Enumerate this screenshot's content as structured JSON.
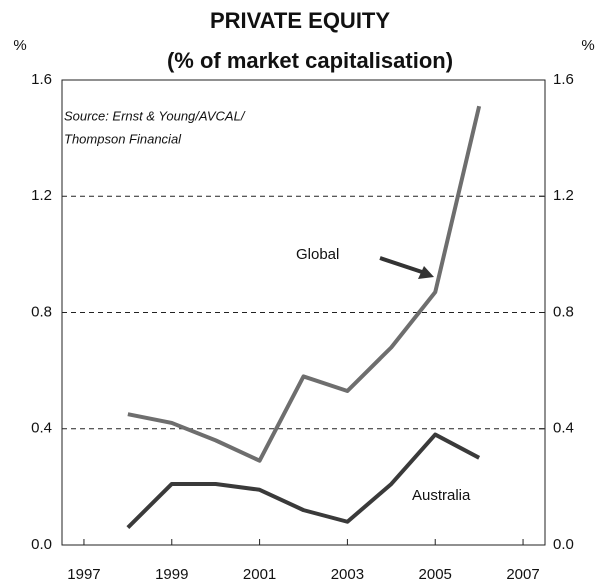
{
  "chart_data": {
    "type": "line",
    "title": "PRIVATE EQUITY",
    "subtitle": "(% of market capitalisation)",
    "y_label": "%",
    "y2_label": "%",
    "source": [
      "Source: Ernst & Young/AVCAL/",
      "Thompson Financial"
    ],
    "x": [
      1998,
      1999,
      2000,
      2001,
      2002,
      2003,
      2004,
      2005,
      2006
    ],
    "series": [
      {
        "name": "Global",
        "color": "#6e6e6e",
        "values": [
          0.45,
          0.42,
          0.36,
          0.29,
          0.58,
          0.53,
          0.68,
          0.87,
          1.51
        ]
      },
      {
        "name": "Australia",
        "color": "#3a3a3a",
        "values": [
          0.06,
          0.21,
          0.21,
          0.19,
          0.12,
          0.08,
          0.21,
          0.38,
          0.3
        ]
      }
    ],
    "xlim": [
      1996.5,
      2007.5
    ],
    "xticks": [
      1997,
      1999,
      2001,
      2003,
      2005,
      2007
    ],
    "ylim": [
      0,
      1.6
    ],
    "yticks": [
      {
        "value": 0,
        "label": "0.0"
      },
      0.4,
      0.8,
      1.2,
      1.6
    ],
    "y2lim": [
      0,
      1.6
    ],
    "y2ticks": [
      {
        "value": 0,
        "label": "0.0"
      },
      0.4,
      0.8,
      1.2,
      1.6
    ],
    "grid": true
  }
}
